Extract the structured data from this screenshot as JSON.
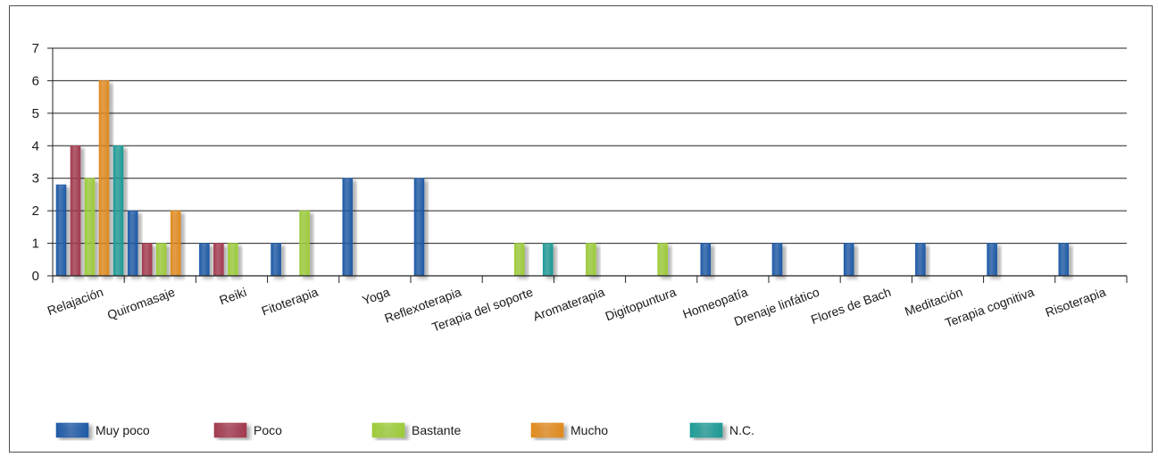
{
  "chart_data": {
    "type": "bar",
    "title": "",
    "xlabel": "",
    "ylabel": "",
    "ylim": [
      0,
      7
    ],
    "yticks": [
      0,
      1,
      2,
      3,
      4,
      5,
      6,
      7
    ],
    "grid": true,
    "legend_position": "bottom",
    "categories": [
      "Relajación",
      "Quiromasaje",
      "Reiki",
      "Fitoterapia",
      "Yoga",
      "Reflexoterapia",
      "Terapia del soporte",
      "Aromaterapia",
      "Digitopuntura",
      "Homeopatía",
      "Drenaje linfático",
      "Flores de Bach",
      "Meditación",
      "Terapia cognitiva",
      "Risoterapia"
    ],
    "series": [
      {
        "name": "Muy poco",
        "color": "#1f5aa6",
        "values": [
          2.8,
          2,
          1,
          1,
          3,
          3,
          0,
          0,
          0,
          1,
          1,
          1,
          1,
          1,
          1
        ]
      },
      {
        "name": "Poco",
        "color": "#a23a4f",
        "values": [
          4,
          1,
          1,
          0,
          0,
          0,
          0,
          0,
          0,
          0,
          0,
          0,
          0,
          0,
          0
        ]
      },
      {
        "name": "Bastante",
        "color": "#9ccb3a",
        "values": [
          3,
          1,
          1,
          2,
          0,
          0,
          1,
          1,
          1,
          0,
          0,
          0,
          0,
          0,
          0
        ]
      },
      {
        "name": "Mucho",
        "color": "#e08a1e",
        "values": [
          6,
          2,
          0,
          0,
          0,
          0,
          0,
          0,
          0,
          0,
          0,
          0,
          0,
          0,
          0
        ]
      },
      {
        "name": "N.C.",
        "color": "#1f9a95",
        "values": [
          4,
          0,
          0,
          0,
          0,
          0,
          1,
          0,
          0,
          0,
          0,
          0,
          0,
          0,
          0
        ]
      }
    ]
  }
}
